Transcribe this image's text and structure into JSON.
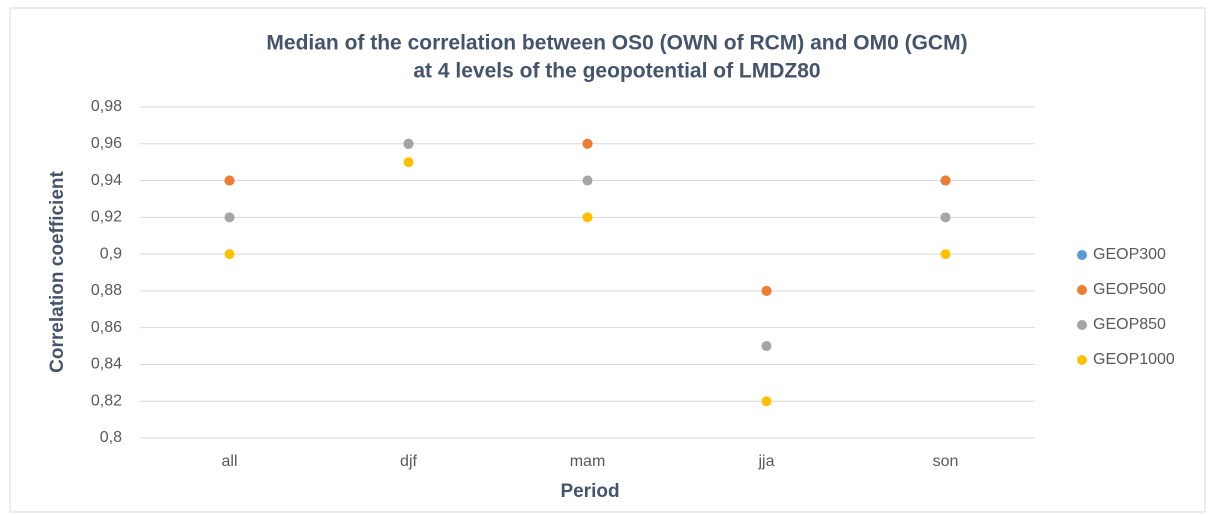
{
  "chart_data": {
    "type": "scatter",
    "title": [
      "Median of the correlation between OS0 (OWN of RCM) and OM0 (GCM)",
      "at 4 levels of the geopotential of LMDZ80"
    ],
    "x_label": "Period",
    "y_label": "Correlation coefficient",
    "categories": [
      "all",
      "djf",
      "mam",
      "jja",
      "son"
    ],
    "series": [
      {
        "name": "GEOP300",
        "color": "#5b9bd5",
        "values": [
          0.94,
          0.96,
          0.96,
          0.88,
          0.94
        ]
      },
      {
        "name": "GEOP500",
        "color": "#ed7d31",
        "values": [
          0.94,
          0.96,
          0.96,
          0.88,
          0.94
        ]
      },
      {
        "name": "GEOP850",
        "color": "#a5a5a5",
        "values": [
          0.92,
          0.96,
          0.94,
          0.85,
          0.92
        ]
      },
      {
        "name": "GEOP1000",
        "color": "#ffc000",
        "values": [
          0.9,
          0.95,
          0.92,
          0.82,
          0.9
        ]
      }
    ],
    "ylim": [
      0.8,
      0.98
    ],
    "yticks": [
      {
        "value": 0.8,
        "label": "0,8"
      },
      {
        "value": 0.82,
        "label": "0,82"
      },
      {
        "value": 0.84,
        "label": "0,84"
      },
      {
        "value": 0.86,
        "label": "0,86"
      },
      {
        "value": 0.88,
        "label": "0,88"
      },
      {
        "value": 0.9,
        "label": "0,9"
      },
      {
        "value": 0.92,
        "label": "0,92"
      },
      {
        "value": 0.94,
        "label": "0,94"
      },
      {
        "value": 0.96,
        "label": "0,96"
      },
      {
        "value": 0.98,
        "label": "0,98"
      }
    ],
    "grid": true,
    "legend": "right"
  }
}
